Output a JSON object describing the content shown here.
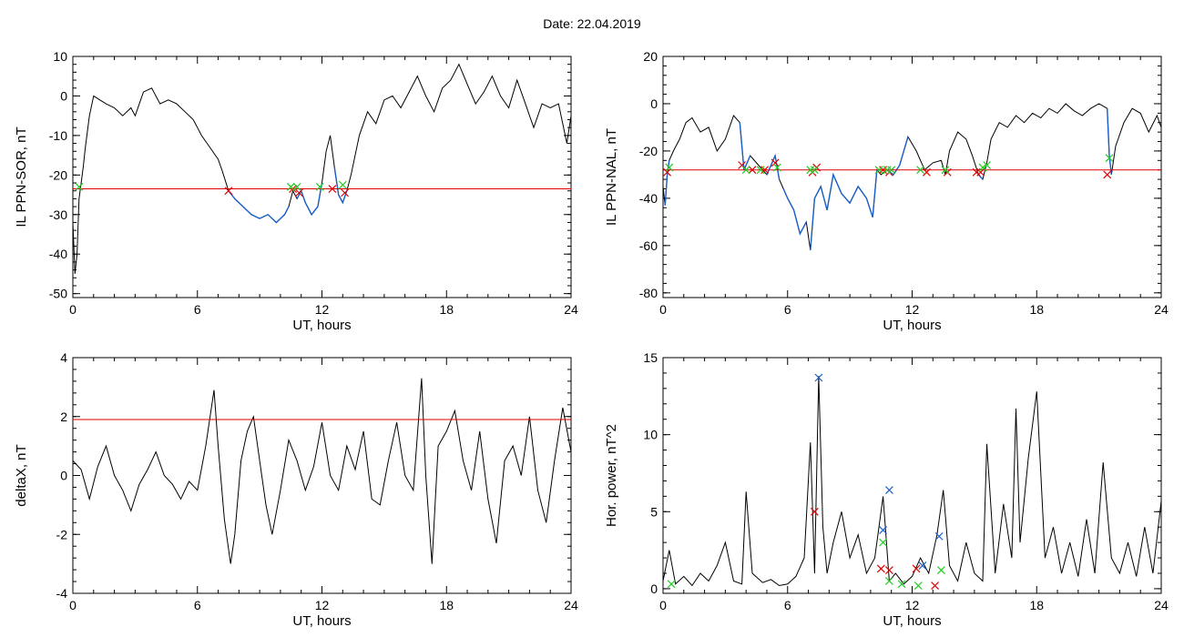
{
  "figure": {
    "title": "Date:  22.04.2019"
  },
  "colors": {
    "trace": "#000000",
    "threshold": "#e00000",
    "highlight": "#1a5fc8",
    "marker_red": "#e00000",
    "marker_green": "#22cc22",
    "marker_blue": "#1a5fc8"
  },
  "chart_data": [
    {
      "id": "sor",
      "type": "line",
      "xlabel": "UT, hours",
      "ylabel": "IL PPN-SOR, nT",
      "xlim": [
        0,
        24
      ],
      "ylim": [
        -51,
        10
      ],
      "xticks": [
        0,
        6,
        12,
        18,
        24
      ],
      "yticks": [
        10,
        0,
        -10,
        -20,
        -30,
        -40,
        -50
      ],
      "threshold": -23.5,
      "x": [
        0,
        0.1,
        0.2,
        0.3,
        0.4,
        0.5,
        0.6,
        0.8,
        1.0,
        1.3,
        1.6,
        2.0,
        2.4,
        2.8,
        3.0,
        3.4,
        3.8,
        4.2,
        4.6,
        5.0,
        5.4,
        5.8,
        6.2,
        6.6,
        7.0,
        7.2,
        7.5,
        7.8,
        8.2,
        8.6,
        9.0,
        9.4,
        9.8,
        10.2,
        10.4,
        10.6,
        10.8,
        11.0,
        11.2,
        11.5,
        11.8,
        12.0,
        12.2,
        12.4,
        12.6,
        12.8,
        13.0,
        13.2,
        13.4,
        13.8,
        14.2,
        14.6,
        15.0,
        15.4,
        15.8,
        16.2,
        16.6,
        17.0,
        17.4,
        17.8,
        18.2,
        18.6,
        19.0,
        19.4,
        19.8,
        20.2,
        20.6,
        21.0,
        21.4,
        21.8,
        22.2,
        22.6,
        23.0,
        23.4,
        23.8,
        24.0
      ],
      "values": [
        -32,
        -45,
        -40,
        -26,
        -22,
        -18,
        -13,
        -5,
        0,
        -1,
        -2,
        -3,
        -5,
        -3,
        -5,
        1,
        2,
        -2,
        -1,
        -2,
        -4,
        -6,
        -10,
        -13,
        -16,
        -19,
        -24,
        -26,
        -28,
        -30,
        -31,
        -30,
        -32,
        -30,
        -28,
        -24,
        -26,
        -24,
        -27,
        -30,
        -28,
        -22,
        -14,
        -10,
        -18,
        -25,
        -27,
        -24,
        -20,
        -10,
        -4,
        -7,
        -1,
        0,
        -3,
        1,
        5,
        0,
        -4,
        2,
        4,
        8,
        3,
        -2,
        1,
        5,
        0,
        -3,
        4,
        -2,
        -8,
        -2,
        -3,
        -2,
        -12,
        -5
      ],
      "highlight_ranges": [
        [
          7.5,
          10.5
        ],
        [
          10.7,
          12.0
        ],
        [
          12.6,
          13.3
        ]
      ],
      "markers_red": [
        [
          7.5,
          -24
        ],
        [
          10.6,
          -23.5
        ],
        [
          10.9,
          -24.5
        ],
        [
          12.5,
          -23.5
        ],
        [
          13.1,
          -24.5
        ]
      ],
      "markers_green": [
        [
          0.3,
          -23
        ],
        [
          10.5,
          -23
        ],
        [
          10.8,
          -23
        ],
        [
          11.9,
          -23
        ],
        [
          13.0,
          -22.5
        ]
      ]
    },
    {
      "id": "nal",
      "type": "line",
      "xlabel": "UT, hours",
      "ylabel": "IL PPN-NAL, nT",
      "xlim": [
        0,
        24
      ],
      "ylim": [
        -82,
        20
      ],
      "xticks": [
        0,
        6,
        12,
        18,
        24
      ],
      "yticks": [
        20,
        0,
        -20,
        -40,
        -60,
        -80
      ],
      "threshold": -28,
      "x": [
        0,
        0.1,
        0.2,
        0.3,
        0.5,
        0.8,
        1.1,
        1.4,
        1.8,
        2.2,
        2.6,
        3.0,
        3.4,
        3.7,
        3.9,
        4.2,
        4.6,
        5.0,
        5.4,
        5.6,
        5.8,
        6.0,
        6.3,
        6.6,
        6.9,
        7.1,
        7.3,
        7.6,
        7.9,
        8.2,
        8.6,
        9.0,
        9.4,
        9.8,
        10.1,
        10.3,
        10.5,
        10.8,
        11.1,
        11.4,
        11.8,
        12.2,
        12.6,
        13.0,
        13.4,
        13.6,
        13.8,
        14.2,
        14.6,
        14.9,
        15.2,
        15.4,
        15.6,
        15.8,
        16.2,
        16.6,
        17.0,
        17.4,
        17.8,
        18.2,
        18.6,
        19.0,
        19.4,
        19.8,
        20.2,
        20.6,
        21.0,
        21.4,
        21.5,
        21.6,
        21.8,
        22.2,
        22.6,
        23.0,
        23.4,
        23.8,
        24.0
      ],
      "values": [
        -35,
        -43,
        -30,
        -24,
        -20,
        -15,
        -8,
        -6,
        -12,
        -10,
        -20,
        -15,
        -5,
        -8,
        -28,
        -22,
        -26,
        -30,
        -22,
        -32,
        -36,
        -40,
        -45,
        -55,
        -50,
        -62,
        -40,
        -35,
        -45,
        -30,
        -38,
        -42,
        -35,
        -40,
        -48,
        -28,
        -30,
        -28,
        -30,
        -26,
        -14,
        -20,
        -28,
        -25,
        -24,
        -30,
        -20,
        -12,
        -15,
        -22,
        -30,
        -32,
        -25,
        -15,
        -8,
        -10,
        -5,
        -8,
        -4,
        -6,
        -2,
        -4,
        0,
        -3,
        -5,
        -2,
        0,
        -2,
        -22,
        -30,
        -18,
        -8,
        -2,
        -4,
        -12,
        -5,
        -10
      ],
      "highlight_ranges": [
        [
          0.1,
          0.3
        ],
        [
          3.7,
          4.5
        ],
        [
          4.7,
          5.6
        ],
        [
          5.7,
          7.0
        ],
        [
          7.1,
          10.4
        ],
        [
          10.7,
          12.0
        ],
        [
          15.1,
          15.5
        ],
        [
          21.4,
          21.6
        ]
      ],
      "markers_red": [
        [
          0.2,
          -29
        ],
        [
          3.8,
          -26
        ],
        [
          4.3,
          -28
        ],
        [
          4.9,
          -28
        ],
        [
          5.4,
          -25
        ],
        [
          7.2,
          -29
        ],
        [
          7.4,
          -27
        ],
        [
          10.6,
          -28
        ],
        [
          10.9,
          -29
        ],
        [
          12.7,
          -29
        ],
        [
          13.7,
          -29
        ],
        [
          15.1,
          -29
        ],
        [
          15.3,
          -29
        ],
        [
          21.4,
          -30
        ]
      ],
      "markers_green": [
        [
          0.3,
          -27
        ],
        [
          4.0,
          -28
        ],
        [
          4.7,
          -28
        ],
        [
          5.5,
          -27
        ],
        [
          7.1,
          -28
        ],
        [
          7.3,
          -28
        ],
        [
          10.4,
          -28
        ],
        [
          10.8,
          -28
        ],
        [
          11.0,
          -28
        ],
        [
          12.4,
          -28
        ],
        [
          13.6,
          -28
        ],
        [
          15.4,
          -27
        ],
        [
          15.6,
          -26
        ],
        [
          21.5,
          -23
        ]
      ]
    },
    {
      "id": "deltax",
      "type": "line",
      "xlabel": "UT, hours",
      "ylabel": "deltaX, nT",
      "xlim": [
        0,
        24
      ],
      "ylim": [
        -4,
        4
      ],
      "xticks": [
        0,
        6,
        12,
        18,
        24
      ],
      "yticks": [
        4,
        2,
        0,
        -2,
        -4
      ],
      "threshold": 1.9,
      "x": [
        0,
        0.4,
        0.8,
        1.2,
        1.6,
        2.0,
        2.4,
        2.8,
        3.2,
        3.6,
        4.0,
        4.4,
        4.8,
        5.2,
        5.6,
        6.0,
        6.4,
        6.8,
        7.0,
        7.3,
        7.6,
        7.8,
        8.1,
        8.4,
        8.7,
        9.0,
        9.3,
        9.6,
        10.0,
        10.4,
        10.8,
        11.2,
        11.6,
        12.0,
        12.4,
        12.8,
        13.2,
        13.6,
        14.0,
        14.4,
        14.8,
        15.2,
        15.6,
        16.0,
        16.4,
        16.8,
        17.0,
        17.3,
        17.6,
        18.0,
        18.4,
        18.8,
        19.2,
        19.6,
        20.0,
        20.4,
        20.8,
        21.2,
        21.6,
        22.0,
        22.4,
        22.8,
        23.2,
        23.6,
        24.0
      ],
      "values": [
        0.5,
        0.2,
        -0.8,
        0.3,
        1.0,
        0.0,
        -0.5,
        -1.2,
        -0.3,
        0.2,
        0.8,
        0.0,
        -0.3,
        -0.8,
        -0.2,
        -0.5,
        1.0,
        2.9,
        1.0,
        -1.5,
        -3.0,
        -2.0,
        0.5,
        1.5,
        2.0,
        0.5,
        -1.0,
        -2.0,
        -0.5,
        1.2,
        0.5,
        -0.5,
        0.3,
        1.8,
        0.0,
        -0.5,
        1.0,
        0.2,
        1.5,
        -0.8,
        -1.0,
        0.5,
        1.8,
        0.0,
        -0.5,
        3.3,
        0.0,
        -3.0,
        1.0,
        1.5,
        2.2,
        0.5,
        -0.5,
        1.5,
        -0.8,
        -2.3,
        0.5,
        1.0,
        0.0,
        2.0,
        -0.5,
        -1.6,
        0.5,
        2.3,
        0.8
      ],
      "highlight_ranges": [],
      "markers_red": [],
      "markers_green": []
    },
    {
      "id": "power",
      "type": "line",
      "xlabel": "UT, hours",
      "ylabel": "Hor. power, nT^2",
      "xlim": [
        0,
        24
      ],
      "ylim": [
        -0.3,
        15
      ],
      "xticks": [
        0,
        6,
        12,
        18,
        24
      ],
      "yticks": [
        15,
        10,
        5,
        0
      ],
      "threshold": null,
      "x": [
        0,
        0.3,
        0.6,
        1.0,
        1.4,
        1.8,
        2.2,
        2.6,
        3.0,
        3.4,
        3.8,
        4.0,
        4.3,
        4.8,
        5.2,
        5.6,
        6.0,
        6.4,
        6.8,
        7.1,
        7.3,
        7.5,
        7.7,
        7.9,
        8.2,
        8.6,
        9.0,
        9.4,
        9.8,
        10.2,
        10.6,
        10.9,
        11.2,
        11.6,
        12.0,
        12.4,
        12.8,
        13.2,
        13.5,
        13.8,
        14.2,
        14.6,
        15.0,
        15.4,
        15.6,
        16.0,
        16.4,
        16.8,
        17.0,
        17.2,
        17.6,
        18.0,
        18.4,
        18.8,
        19.2,
        19.6,
        20.0,
        20.4,
        20.8,
        21.2,
        21.6,
        22.0,
        22.4,
        22.8,
        23.2,
        23.6,
        24.0
      ],
      "values": [
        0.5,
        2.5,
        0.3,
        0.8,
        0.2,
        1.0,
        0.5,
        1.5,
        3.0,
        0.5,
        0.3,
        6.3,
        1.0,
        0.4,
        0.6,
        0.2,
        0.3,
        0.8,
        2.0,
        9.5,
        1.0,
        13.8,
        4.0,
        1.0,
        3.0,
        5.0,
        2.0,
        3.5,
        1.0,
        2.0,
        6.0,
        0.5,
        1.0,
        0.3,
        0.8,
        2.0,
        1.0,
        3.5,
        6.4,
        1.5,
        0.5,
        3.0,
        1.0,
        0.5,
        9.4,
        1.0,
        5.5,
        2.0,
        11.7,
        3.0,
        8.5,
        12.8,
        2.0,
        4.0,
        1.0,
        3.0,
        0.8,
        4.5,
        1.0,
        8.2,
        2.0,
        1.0,
        3.0,
        0.8,
        4.0,
        1.0,
        5.7
      ],
      "highlight_ranges": [],
      "markers_red": [
        [
          7.3,
          5.0
        ],
        [
          10.5,
          1.3
        ],
        [
          10.9,
          1.2
        ],
        [
          12.2,
          1.3
        ],
        [
          13.1,
          0.2
        ]
      ],
      "markers_green": [
        [
          0.4,
          0.3
        ],
        [
          10.6,
          3.0
        ],
        [
          10.9,
          0.5
        ],
        [
          11.5,
          0.3
        ],
        [
          12.3,
          0.2
        ],
        [
          13.4,
          1.2
        ]
      ],
      "markers_blue": [
        [
          7.5,
          13.7
        ],
        [
          10.6,
          3.8
        ],
        [
          10.9,
          6.4
        ],
        [
          12.5,
          1.5
        ],
        [
          13.3,
          3.4
        ]
      ]
    }
  ]
}
